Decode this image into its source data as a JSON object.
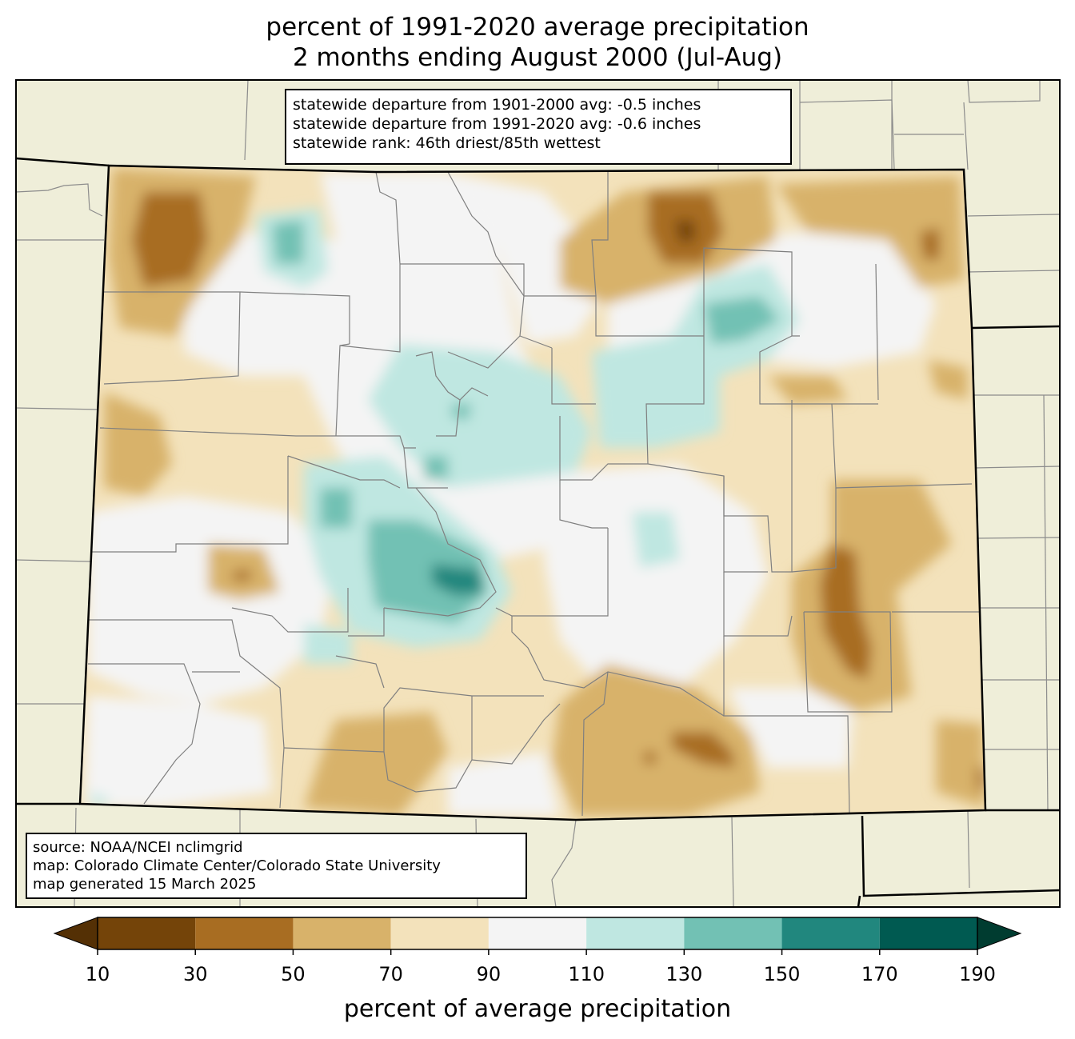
{
  "title": {
    "line1": "percent of 1991-2020 average precipitation",
    "line2": "2 months ending August 2000 (Jul-Aug)"
  },
  "stats": {
    "line1": "statewide departure from 1901-2000 avg: -0.5 inches",
    "line2": "statewide departure from 1991-2020 avg: -0.6 inches",
    "line3": "statewide rank: 46th driest/85th wettest"
  },
  "source": {
    "line1": "source: NOAA/NCEI nclimgrid",
    "line2": "map: Colorado Climate Center/Colorado State University",
    "line3": "map generated 15 March 2025"
  },
  "colorbar": {
    "label": "percent of average precipitation",
    "ticks": [
      "10",
      "30",
      "50",
      "70",
      "90",
      "110",
      "130",
      "150",
      "170",
      "190"
    ],
    "under_color": "#543005",
    "over_color": "#003c30",
    "bins": [
      "#744409",
      "#a86d22",
      "#d8b26a",
      "#f3e2bb",
      "#f4f4f4",
      "#bfe7e1",
      "#72c1b4",
      "#21877e",
      "#005a51"
    ]
  },
  "colors": {
    "land": "#efeed9",
    "county_lines": "#7f7f7f",
    "state_lines": "#000000"
  }
}
